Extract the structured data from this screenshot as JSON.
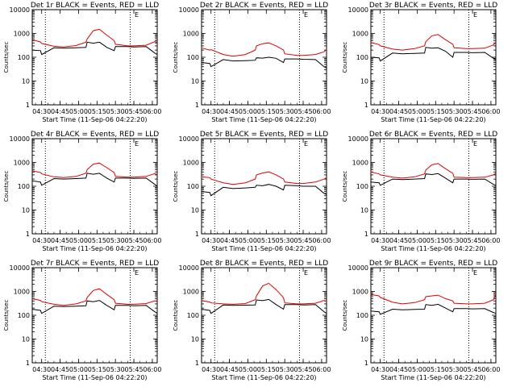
{
  "figure": {
    "background": "#ffffff"
  },
  "style": {
    "events_color": "#000000",
    "lld_color": "#e00000",
    "axis_color": "#000000"
  },
  "common": {
    "type": "line",
    "yscale": "log",
    "ylim": [
      1,
      10000
    ],
    "ylabel": "Counts/sec",
    "xlabel": "Start Time (11-Sep-06 04:22:20)",
    "xlim": [
      "04:22:20",
      "06:04:00"
    ],
    "xticks": [
      "04:30",
      "04:45",
      "05:00",
      "05:15",
      "05:30",
      "05:45",
      "06:00"
    ],
    "yticks": [
      "1",
      "10",
      "100",
      "1000",
      "10000"
    ],
    "vlines_dotted": [
      "04:33",
      "05:42"
    ],
    "marker_label": "E",
    "series": [
      "Events",
      "LLD"
    ]
  },
  "chart_data": [
    {
      "title": "Det 1r BLACK = Events, RED = LLD",
      "x": [
        "04:22",
        "04:29",
        "04:30",
        "04:40",
        "04:48",
        "04:58",
        "05:06",
        "05:07",
        "05:12",
        "05:17",
        "05:23",
        "05:29",
        "05:30",
        "05:40",
        "05:45",
        "05:55",
        "06:02",
        "06:04"
      ],
      "series": [
        {
          "name": "Events",
          "values": [
            200,
            190,
            130,
            250,
            240,
            250,
            260,
            430,
            390,
            430,
            260,
            190,
            280,
            280,
            270,
            280,
            150,
            130
          ]
        },
        {
          "name": "LLD",
          "values": [
            550,
            440,
            380,
            290,
            270,
            310,
            430,
            590,
            1300,
            1500,
            850,
            500,
            350,
            300,
            300,
            320,
            450,
            420
          ]
        }
      ]
    },
    {
      "title": "Det 2r BLACK = Events, RED = LLD",
      "x": [
        "04:22",
        "04:29",
        "04:30",
        "04:40",
        "04:48",
        "04:58",
        "05:06",
        "05:07",
        "05:12",
        "05:17",
        "05:23",
        "05:29",
        "05:30",
        "05:40",
        "05:45",
        "05:55",
        "06:02",
        "06:04"
      ],
      "series": [
        {
          "name": "Events",
          "values": [
            60,
            55,
            40,
            80,
            70,
            72,
            75,
            95,
            92,
            100,
            90,
            60,
            85,
            85,
            82,
            80,
            40,
            35
          ]
        },
        {
          "name": "LLD",
          "values": [
            250,
            200,
            210,
            130,
            110,
            130,
            200,
            300,
            370,
            400,
            300,
            200,
            140,
            120,
            120,
            130,
            170,
            210
          ]
        }
      ]
    },
    {
      "title": "Det 3r BLACK = Events, RED = LLD",
      "x": [
        "04:22",
        "04:29",
        "04:30",
        "04:40",
        "04:48",
        "04:58",
        "05:06",
        "05:07",
        "05:12",
        "05:17",
        "05:23",
        "05:29",
        "05:30",
        "05:40",
        "05:45",
        "05:55",
        "06:02",
        "06:04"
      ],
      "series": [
        {
          "name": "Events",
          "values": [
            100,
            95,
            70,
            150,
            140,
            145,
            150,
            260,
            240,
            250,
            180,
            100,
            160,
            160,
            155,
            160,
            90,
            80
          ]
        },
        {
          "name": "LLD",
          "values": [
            420,
            340,
            300,
            220,
            200,
            230,
            300,
            450,
            800,
            900,
            550,
            350,
            250,
            230,
            230,
            240,
            330,
            430
          ]
        }
      ]
    },
    {
      "title": "Det 4r BLACK = Events, RED = LLD",
      "x": [
        "04:22",
        "04:29",
        "04:30",
        "04:40",
        "04:48",
        "04:58",
        "05:06",
        "05:07",
        "05:12",
        "05:17",
        "05:23",
        "05:29",
        "05:30",
        "05:40",
        "05:45",
        "05:55",
        "06:02",
        "06:04"
      ],
      "series": [
        {
          "name": "Events",
          "values": [
            170,
            150,
            110,
            210,
            200,
            210,
            220,
            350,
            320,
            350,
            220,
            150,
            220,
            220,
            215,
            220,
            120,
            100
          ]
        },
        {
          "name": "LLD",
          "values": [
            450,
            380,
            330,
            250,
            230,
            260,
            350,
            500,
            850,
            950,
            600,
            380,
            260,
            240,
            240,
            260,
            340,
            300
          ]
        }
      ]
    },
    {
      "title": "Det 5r BLACK = Events, RED = LLD",
      "x": [
        "04:22",
        "04:29",
        "04:30",
        "04:40",
        "04:48",
        "04:58",
        "05:06",
        "05:07",
        "05:12",
        "05:17",
        "05:23",
        "05:29",
        "05:30",
        "05:40",
        "05:45",
        "05:55",
        "06:02",
        "06:04"
      ],
      "series": [
        {
          "name": "Events",
          "values": [
            60,
            55,
            40,
            90,
            80,
            85,
            90,
            110,
            105,
            120,
            100,
            70,
            110,
            105,
            100,
            100,
            50,
            45
          ]
        },
        {
          "name": "LLD",
          "values": [
            250,
            230,
            200,
            140,
            120,
            140,
            200,
            300,
            360,
            400,
            300,
            200,
            150,
            130,
            130,
            150,
            200,
            230
          ]
        }
      ]
    },
    {
      "title": "Det 6r BLACK = Events, RED = LLD",
      "x": [
        "04:22",
        "04:29",
        "04:30",
        "04:40",
        "04:48",
        "04:58",
        "05:06",
        "05:07",
        "05:12",
        "05:17",
        "05:23",
        "05:29",
        "05:30",
        "05:40",
        "05:45",
        "05:55",
        "06:02",
        "06:04"
      ],
      "series": [
        {
          "name": "Events",
          "values": [
            150,
            140,
            110,
            200,
            190,
            200,
            210,
            330,
            310,
            340,
            220,
            140,
            200,
            200,
            195,
            200,
            120,
            110
          ]
        },
        {
          "name": "LLD",
          "values": [
            400,
            330,
            300,
            240,
            220,
            250,
            330,
            480,
            800,
            900,
            550,
            350,
            240,
            230,
            230,
            240,
            300,
            350
          ]
        }
      ]
    },
    {
      "title": "Det 7r BLACK = Events, RED = LLD",
      "x": [
        "04:22",
        "04:29",
        "04:30",
        "04:40",
        "04:48",
        "04:58",
        "05:06",
        "05:07",
        "05:12",
        "05:17",
        "05:23",
        "05:29",
        "05:30",
        "05:40",
        "05:45",
        "05:55",
        "06:02",
        "06:04"
      ],
      "series": [
        {
          "name": "Events",
          "values": [
            180,
            160,
            120,
            240,
            230,
            240,
            250,
            400,
            370,
            420,
            260,
            170,
            260,
            260,
            250,
            260,
            140,
            120
          ]
        },
        {
          "name": "LLD",
          "values": [
            500,
            420,
            370,
            290,
            260,
            300,
            400,
            560,
            1100,
            1300,
            750,
            450,
            320,
            290,
            290,
            310,
            400,
            380
          ]
        }
      ]
    },
    {
      "title": "Det 8r BLACK = Events, RED = LLD",
      "x": [
        "04:22",
        "04:29",
        "04:30",
        "04:40",
        "04:48",
        "04:58",
        "05:06",
        "05:07",
        "05:12",
        "05:17",
        "05:23",
        "05:29",
        "05:30",
        "05:40",
        "05:45",
        "05:55",
        "06:02",
        "06:04"
      ],
      "series": [
        {
          "name": "Events",
          "values": [
            180,
            160,
            120,
            270,
            260,
            265,
            270,
            440,
            410,
            460,
            280,
            180,
            280,
            280,
            270,
            280,
            140,
            120
          ]
        },
        {
          "name": "LLD",
          "values": [
            420,
            360,
            330,
            300,
            290,
            310,
            450,
            650,
            1700,
            2200,
            1200,
            550,
            330,
            300,
            300,
            320,
            420,
            380
          ]
        }
      ]
    },
    {
      "title": "Det 9r BLACK = Events, RED = LLD",
      "x": [
        "04:22",
        "04:29",
        "04:30",
        "04:40",
        "04:48",
        "04:58",
        "05:06",
        "05:07",
        "05:12",
        "05:17",
        "05:23",
        "05:29",
        "05:30",
        "05:40",
        "05:45",
        "05:55",
        "06:02",
        "06:04"
      ],
      "series": [
        {
          "name": "Events",
          "values": [
            150,
            140,
            110,
            180,
            170,
            175,
            180,
            280,
            260,
            290,
            200,
            140,
            190,
            190,
            185,
            190,
            130,
            120
          ]
        },
        {
          "name": "LLD",
          "values": [
            750,
            650,
            560,
            350,
            300,
            340,
            450,
            600,
            650,
            700,
            500,
            400,
            320,
            300,
            300,
            320,
            450,
            800
          ]
        }
      ]
    }
  ]
}
